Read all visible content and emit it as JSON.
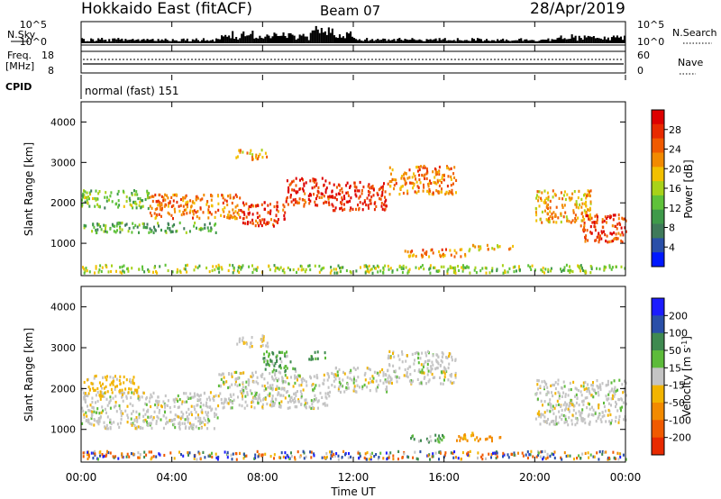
{
  "header": {
    "station": "Hokkaido East (fitACF)",
    "beam": "Beam 07",
    "date": "28/Apr/2019"
  },
  "top_panels": {
    "nsky_label": "N.Sky",
    "nsky_ticks": [
      "10^5",
      "10^0"
    ],
    "nsky_right_ticks": [
      "10^5",
      "10^0"
    ],
    "nsearch_label": "N.Search",
    "freq_label_line1": "Freq.",
    "freq_label_line2": "[MHz]",
    "freq_ticks": [
      "18",
      "8"
    ],
    "nave_ticks": [
      "60",
      "0"
    ],
    "nave_label": "Nave",
    "cpid_label": "CPID",
    "cpid_value": "normal (fast) 151"
  },
  "x_axis": {
    "label": "Time UT",
    "ticks": [
      "00:00",
      "04:00",
      "08:00",
      "12:00",
      "16:00",
      "20:00",
      "00:00"
    ]
  },
  "colors": {
    "power_scale": [
      "#0018ff",
      "#2a4fa8",
      "#3f7a5a",
      "#3f9a4a",
      "#5fc23a",
      "#a8d21a",
      "#f2c000",
      "#f28a00",
      "#f05a00",
      "#e82a00",
      "#dd0000"
    ],
    "velocity_scale": [
      "#1c1cff",
      "#2a4fa8",
      "#3f8a50",
      "#5dbb3a",
      "#c4c4c4",
      "#f2b400",
      "#f28a00",
      "#f05a00",
      "#e82a00"
    ]
  },
  "chart_data": [
    {
      "type": "heatmap",
      "name": "power",
      "xlabel": "",
      "ylabel": "Slant Range [km]",
      "y_ticks": [
        "1000",
        "2000",
        "3000",
        "4000"
      ],
      "ylim": [
        200,
        4500
      ],
      "xlim": [
        0,
        24
      ],
      "colorbar_label": "Power [dB]",
      "colorbar_ticks": [
        "4",
        "8",
        "12",
        "16",
        "20",
        "24",
        "28"
      ],
      "bands": [
        {
          "t0": 0.0,
          "t1": 24.0,
          "r0": 250,
          "r1": 450,
          "v": 14
        },
        {
          "t0": 0.0,
          "t1": 6.0,
          "r0": 1250,
          "r1": 1500,
          "v": 10
        },
        {
          "t0": 0.0,
          "t1": 3.0,
          "r0": 1850,
          "r1": 2300,
          "v": 12
        },
        {
          "t0": 3.0,
          "t1": 7.0,
          "r0": 1600,
          "r1": 2200,
          "v": 22
        },
        {
          "t0": 7.0,
          "t1": 9.0,
          "r0": 1400,
          "r1": 2000,
          "v": 26
        },
        {
          "t0": 9.0,
          "t1": 11.0,
          "r0": 1900,
          "r1": 2600,
          "v": 27
        },
        {
          "t0": 11.0,
          "t1": 13.5,
          "r0": 1800,
          "r1": 2500,
          "v": 28
        },
        {
          "t0": 13.5,
          "t1": 16.5,
          "r0": 2200,
          "r1": 2900,
          "v": 22
        },
        {
          "t0": 14.0,
          "t1": 17.0,
          "r0": 650,
          "r1": 850,
          "v": 22
        },
        {
          "t0": 17.0,
          "t1": 19.0,
          "r0": 800,
          "r1": 950,
          "v": 18
        },
        {
          "t0": 6.8,
          "t1": 8.2,
          "r0": 3050,
          "r1": 3300,
          "v": 20
        },
        {
          "t0": 20.0,
          "t1": 22.5,
          "r0": 1500,
          "r1": 2300,
          "v": 20
        },
        {
          "t0": 22.0,
          "t1": 24.0,
          "r0": 1000,
          "r1": 1700,
          "v": 26
        }
      ]
    },
    {
      "type": "heatmap",
      "name": "velocity",
      "xlabel": "Time UT",
      "ylabel": "Slant Range [km]",
      "y_ticks": [
        "1000",
        "2000",
        "3000",
        "4000"
      ],
      "ylim": [
        200,
        4500
      ],
      "xlim": [
        0,
        24
      ],
      "colorbar_label": "Velocity [m s^-1]",
      "colorbar_ticks": [
        "200",
        "100",
        "50",
        "15",
        "-15",
        "-50",
        "-100",
        "-200"
      ],
      "bands": [
        {
          "t0": 0.0,
          "t1": 24.0,
          "r0": 250,
          "r1": 450,
          "v": 60
        },
        {
          "t0": 0.0,
          "t1": 6.0,
          "r0": 1000,
          "r1": 1900,
          "v": 0
        },
        {
          "t0": 0.0,
          "t1": 2.5,
          "r0": 1800,
          "r1": 2300,
          "v": -30
        },
        {
          "t0": 6.0,
          "t1": 11.0,
          "r0": 1500,
          "r1": 2400,
          "v": 0
        },
        {
          "t0": 8.0,
          "t1": 9.5,
          "r0": 2400,
          "r1": 2900,
          "v": 30
        },
        {
          "t0": 10.0,
          "t1": 10.8,
          "r0": 2700,
          "r1": 2900,
          "v": 40
        },
        {
          "t0": 11.0,
          "t1": 13.5,
          "r0": 1900,
          "r1": 2500,
          "v": 0
        },
        {
          "t0": 13.5,
          "t1": 16.5,
          "r0": 2100,
          "r1": 2900,
          "v": 0
        },
        {
          "t0": 6.8,
          "t1": 8.2,
          "r0": 3000,
          "r1": 3300,
          "v": -5
        },
        {
          "t0": 14.5,
          "t1": 16.0,
          "r0": 650,
          "r1": 850,
          "v": 30
        },
        {
          "t0": 16.5,
          "t1": 18.5,
          "r0": 700,
          "r1": 900,
          "v": -60
        },
        {
          "t0": 20.0,
          "t1": 24.0,
          "r0": 1100,
          "r1": 2200,
          "v": 0
        }
      ]
    }
  ]
}
